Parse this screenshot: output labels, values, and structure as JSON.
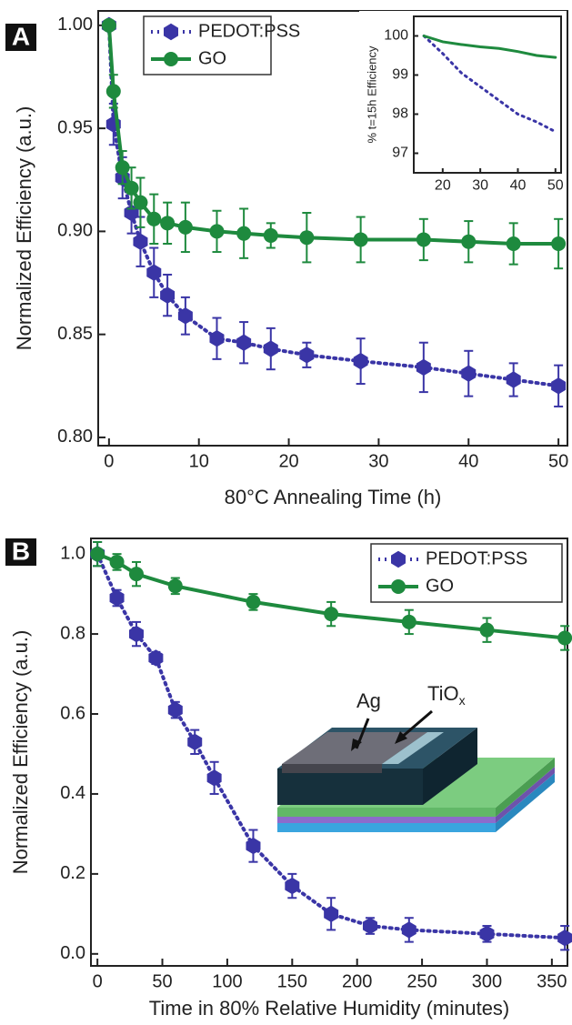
{
  "chart_data": [
    {
      "type": "line",
      "panel_label": "A",
      "x_label": "80°C Annealing Time (h)",
      "y_label": "Normalized Efficiency (a.u.)",
      "xlim": [
        -1.2,
        51
      ],
      "ylim": [
        0.796,
        1.007
      ],
      "xticks": [
        0,
        10,
        20,
        30,
        40,
        50
      ],
      "yticks": [
        {
          "value": 0.8,
          "label": "0.80"
        },
        {
          "value": 0.85,
          "label": "0.85"
        },
        {
          "value": 0.9,
          "label": "0.90"
        },
        {
          "value": 0.95,
          "label": "0.95"
        },
        {
          "value": 1.0,
          "label": "1.00"
        }
      ],
      "legend": "upper left",
      "series": [
        {
          "name": "PEDOT:PSS",
          "color": "#3a35a6",
          "line_style": "dotted",
          "marker": "diamond",
          "x": [
            0,
            0.5,
            1.5,
            2.5,
            3.5,
            5,
            6.5,
            8.5,
            12,
            15,
            18,
            22,
            28,
            35,
            40,
            45,
            50
          ],
          "values": [
            1.0,
            0.952,
            0.926,
            0.909,
            0.895,
            0.88,
            0.869,
            0.859,
            0.848,
            0.846,
            0.843,
            0.84,
            0.837,
            0.834,
            0.831,
            0.828,
            0.825
          ],
          "errors": [
            0,
            0.01,
            0.01,
            0.01,
            0.012,
            0.012,
            0.01,
            0.009,
            0.01,
            0.01,
            0.01,
            0.006,
            0.011,
            0.012,
            0.011,
            0.008,
            0.01
          ]
        },
        {
          "name": "GO",
          "color": "#1e8a3e",
          "line_style": "solid",
          "marker": "circle",
          "x": [
            0,
            0.5,
            1.5,
            2.5,
            3.5,
            5,
            6.5,
            8.5,
            12,
            15,
            18,
            22,
            28,
            35,
            40,
            45,
            50
          ],
          "values": [
            1.0,
            0.968,
            0.931,
            0.921,
            0.914,
            0.906,
            0.904,
            0.902,
            0.9,
            0.899,
            0.898,
            0.897,
            0.896,
            0.896,
            0.895,
            0.894,
            0.894
          ],
          "errors": [
            0,
            0.008,
            0.008,
            0.01,
            0.012,
            0.012,
            0.01,
            0.012,
            0.01,
            0.012,
            0.006,
            0.012,
            0.011,
            0.01,
            0.01,
            0.01,
            0.012
          ]
        }
      ]
    },
    {
      "type": "line",
      "y_label": "% t=15h Efficiency",
      "xlim": [
        12.3,
        51.5
      ],
      "ylim": [
        96.5,
        100.5
      ],
      "xticks": [
        20,
        30,
        40,
        50
      ],
      "yticks": [
        97,
        98,
        99,
        100
      ],
      "series": [
        {
          "name": "PEDOT:PSS",
          "color": "#3a35a6",
          "line_style": "dotted",
          "x": [
            15,
            20,
            25,
            30,
            35,
            40,
            45,
            50
          ],
          "values": [
            100,
            99.55,
            99.05,
            98.7,
            98.35,
            98.0,
            97.8,
            97.55
          ]
        },
        {
          "name": "GO",
          "color": "#1e8a3e",
          "line_style": "solid",
          "x": [
            15,
            20,
            25,
            30,
            35,
            40,
            45,
            50
          ],
          "values": [
            100,
            99.85,
            99.78,
            99.72,
            99.68,
            99.6,
            99.5,
            99.45
          ]
        }
      ]
    },
    {
      "type": "line",
      "panel_label": "B",
      "x_label": "Time in 80% Relative Humidity (minutes)",
      "y_label": "Normalized Efficiency (a.u.)",
      "xlim": [
        -5,
        362
      ],
      "ylim": [
        -0.03,
        1.039
      ],
      "xticks": [
        0,
        50,
        100,
        150,
        200,
        250,
        300,
        350
      ],
      "yticks": [
        {
          "value": 0,
          "label": "0.0"
        },
        0.2,
        0.4,
        0.6,
        0.8,
        {
          "value": 1,
          "label": "1.0"
        }
      ],
      "legend": "upper right",
      "series": [
        {
          "name": "PEDOT:PSS",
          "color": "#3a35a6",
          "line_style": "dotted",
          "marker": "diamond",
          "x": [
            0,
            15,
            30,
            45,
            60,
            75,
            90,
            120,
            150,
            180,
            210,
            240,
            300,
            360
          ],
          "values": [
            1.0,
            0.89,
            0.8,
            0.74,
            0.61,
            0.53,
            0.44,
            0.27,
            0.17,
            0.1,
            0.07,
            0.06,
            0.05,
            0.04
          ],
          "errors": [
            0.03,
            0.02,
            0.03,
            0.015,
            0.02,
            0.03,
            0.04,
            0.04,
            0.03,
            0.04,
            0.02,
            0.03,
            0.02,
            0.03
          ]
        },
        {
          "name": "GO",
          "color": "#1e8a3e",
          "line_style": "solid",
          "marker": "circle",
          "x": [
            0,
            15,
            30,
            60,
            120,
            180,
            240,
            300,
            360
          ],
          "values": [
            1.0,
            0.98,
            0.95,
            0.92,
            0.88,
            0.85,
            0.83,
            0.81,
            0.79
          ],
          "errors": [
            0.03,
            0.02,
            0.03,
            0.02,
            0.02,
            0.03,
            0.03,
            0.03,
            0.03
          ]
        }
      ]
    }
  ],
  "diagram": {
    "ag": "Ag",
    "tio": "TiO",
    "tio_sub": "x"
  }
}
